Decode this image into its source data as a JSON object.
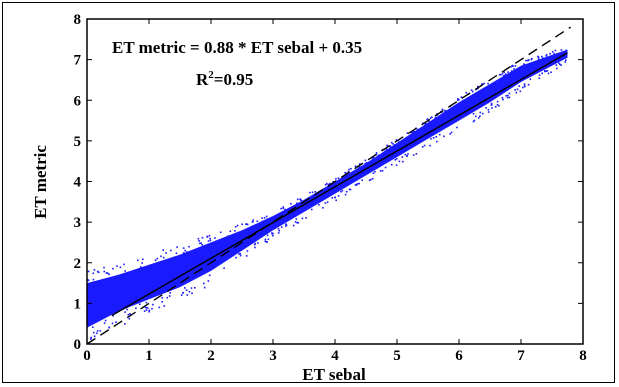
{
  "chart_data": {
    "type": "scatter",
    "xlabel": "ET sebal",
    "ylabel": "ET metric",
    "xlim": [
      0,
      8
    ],
    "ylim": [
      0,
      8
    ],
    "xticks": [
      "0",
      "1",
      "2",
      "3",
      "4",
      "5",
      "6",
      "7",
      "8"
    ],
    "yticks": [
      "0",
      "1",
      "2",
      "3",
      "4",
      "5",
      "6",
      "7",
      "8"
    ],
    "grid": false,
    "annotations": {
      "equation": "ET metric = 0.88 * ET sebal + 0.35",
      "r2_prefix": "R",
      "r2_exp": "2",
      "r2_value": "=0.95"
    },
    "point_color": "#1a1aff",
    "line_color": "#000000",
    "fit_line": {
      "slope": 0.88,
      "intercept": 0.35,
      "x_range": [
        0.4,
        7.75
      ]
    },
    "identity_line": {
      "slope": 1.0,
      "intercept": 0.0,
      "x_range": [
        0,
        7.8
      ]
    },
    "cloud_profile": [
      {
        "x": 0.0,
        "low": 0.4,
        "high": 1.5
      },
      {
        "x": 0.5,
        "low": 0.8,
        "high": 1.7
      },
      {
        "x": 1.0,
        "low": 1.1,
        "high": 1.95
      },
      {
        "x": 1.5,
        "low": 1.4,
        "high": 2.2
      },
      {
        "x": 2.0,
        "low": 1.8,
        "high": 2.5
      },
      {
        "x": 2.5,
        "low": 2.3,
        "high": 2.8
      },
      {
        "x": 3.0,
        "low": 2.8,
        "high": 3.15
      },
      {
        "x": 3.5,
        "low": 3.25,
        "high": 3.55
      },
      {
        "x": 4.0,
        "low": 3.7,
        "high": 4.0
      },
      {
        "x": 4.5,
        "low": 4.15,
        "high": 4.45
      },
      {
        "x": 5.0,
        "low": 4.6,
        "high": 4.95
      },
      {
        "x": 5.5,
        "low": 5.05,
        "high": 5.45
      },
      {
        "x": 6.0,
        "low": 5.5,
        "high": 5.95
      },
      {
        "x": 6.5,
        "low": 5.95,
        "high": 6.4
      },
      {
        "x": 7.0,
        "low": 6.45,
        "high": 6.85
      },
      {
        "x": 7.75,
        "low": 7.05,
        "high": 7.25
      }
    ]
  }
}
